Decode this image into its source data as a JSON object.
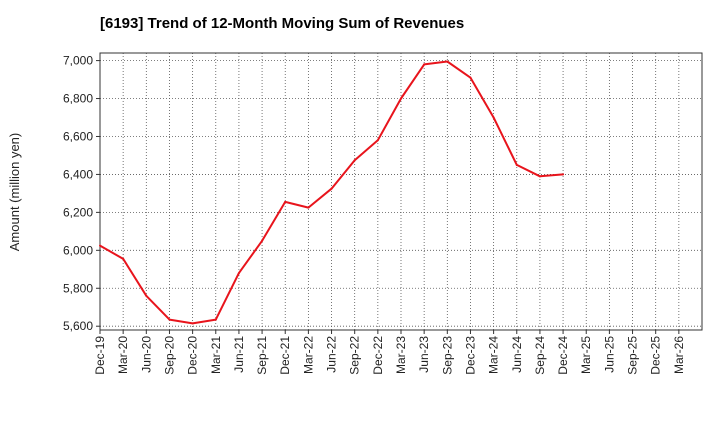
{
  "chart_data": {
    "type": "line",
    "title": "[6193]  Trend of 12-Month Moving Sum of Revenues",
    "xlabel": "",
    "ylabel": "Amount (million yen)",
    "categories": [
      "Dec-19",
      "Mar-20",
      "Jun-20",
      "Sep-20",
      "Dec-20",
      "Mar-21",
      "Jun-21",
      "Sep-21",
      "Dec-21",
      "Mar-22",
      "Jun-22",
      "Sep-22",
      "Dec-22",
      "Mar-23",
      "Jun-23",
      "Sep-23",
      "Dec-23",
      "Mar-24",
      "Jun-24",
      "Sep-24",
      "Dec-24",
      "Mar-25"
    ],
    "x_tick_labels": [
      "Dec-19",
      "Mar-20",
      "Jun-20",
      "Sep-20",
      "Dec-20",
      "Mar-21",
      "Jun-21",
      "Sep-21",
      "Dec-21",
      "Mar-22",
      "Jun-22",
      "Sep-22",
      "Dec-22",
      "Mar-23",
      "Jun-23",
      "Sep-23",
      "Dec-23",
      "Mar-24",
      "Jun-24",
      "Sep-24",
      "Dec-24",
      "Mar-25",
      "Jun-25",
      "Sep-25",
      "Dec-25",
      "Mar-26"
    ],
    "series": [
      {
        "name": "",
        "color": "#e8141c",
        "values": [
          6025,
          5955,
          5760,
          5635,
          5615,
          5635,
          5880,
          6050,
          6255,
          6225,
          6325,
          6475,
          6580,
          6800,
          6980,
          6995,
          6910,
          6700,
          6450,
          6390,
          6400,
          null
        ]
      }
    ],
    "ylim": [
      5580,
      7040
    ],
    "y_ticks": [
      5600,
      5800,
      6000,
      6200,
      6400,
      6600,
      6800,
      7000
    ],
    "y_tick_labels": [
      "5,600",
      "5,800",
      "6,000",
      "6,200",
      "6,400",
      "6,600",
      "6,800",
      "7,000"
    ],
    "grid": true,
    "grid_style": "dotted",
    "legend": "none"
  }
}
